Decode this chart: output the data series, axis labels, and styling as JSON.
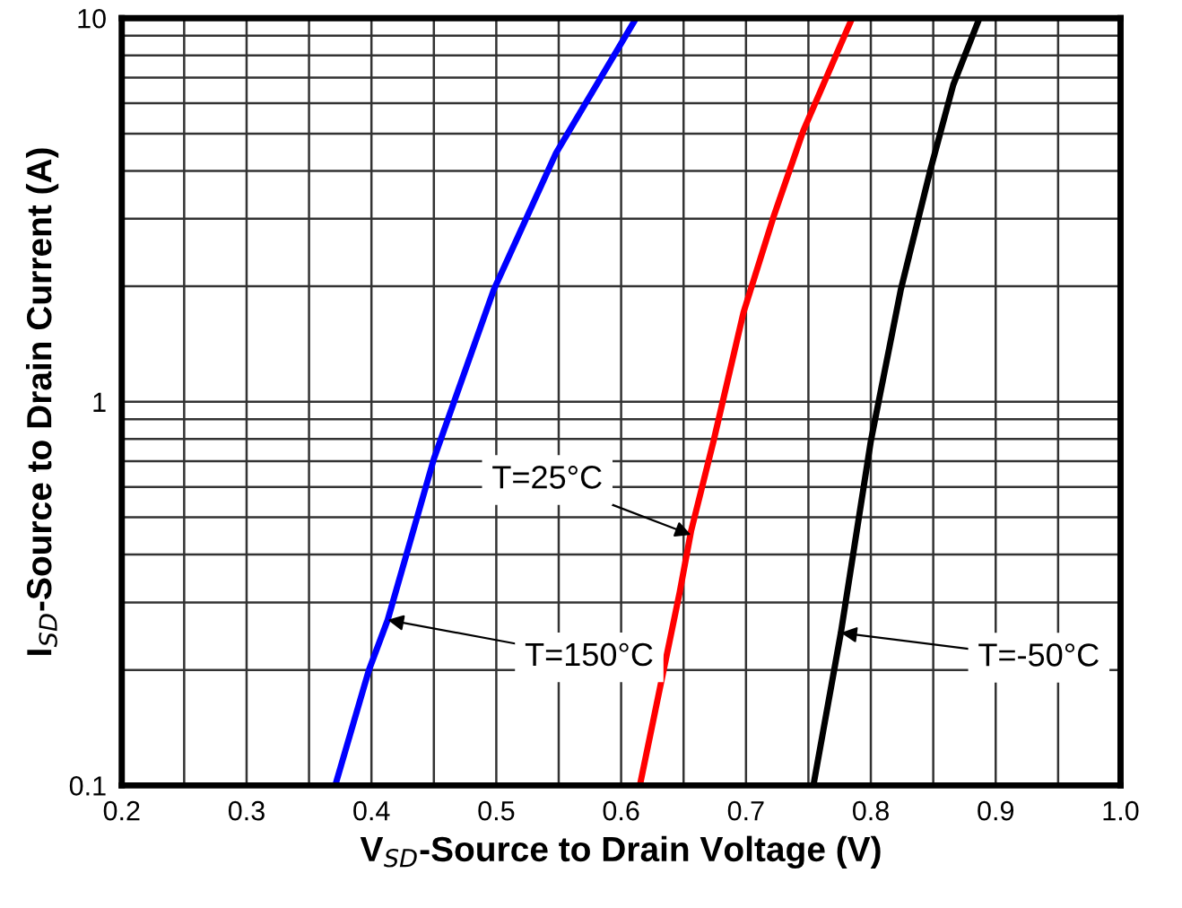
{
  "chart_data": {
    "type": "line",
    "log": "y",
    "grid": true,
    "marker": "none",
    "line_style": "solid",
    "legend": false,
    "xlabel": "V$_{SD}$-Source to Drain Voltage (V)",
    "ylabel": "I$_{SD}$-Source to Drain Current (A)",
    "xlim": [
      0.2,
      1.0
    ],
    "ylim": [
      0.1,
      10
    ],
    "xticks": [
      0.2,
      {
        "value": 0.25,
        "label": null
      },
      0.3,
      {
        "value": 0.35,
        "label": null
      },
      0.4,
      {
        "value": 0.45,
        "label": null
      },
      0.5,
      {
        "value": 0.55,
        "label": null
      },
      0.6,
      {
        "value": 0.65,
        "label": null
      },
      0.7,
      {
        "value": 0.75,
        "label": null
      },
      0.8,
      {
        "value": 0.85,
        "label": null
      },
      0.9,
      {
        "value": 0.95,
        "label": null
      },
      {
        "value": 1.0,
        "label": "1.0"
      }
    ],
    "yticks": [
      0.1,
      {
        "value": 0.2,
        "label": null
      },
      {
        "value": 0.3,
        "label": null
      },
      {
        "value": 0.4,
        "label": null
      },
      {
        "value": 0.5,
        "label": null
      },
      {
        "value": 0.6,
        "label": null
      },
      {
        "value": 0.7,
        "label": null
      },
      {
        "value": 0.8,
        "label": null
      },
      {
        "value": 0.9,
        "label": null
      },
      1,
      {
        "value": 2,
        "label": null
      },
      {
        "value": 3,
        "label": null
      },
      {
        "value": 4,
        "label": null
      },
      {
        "value": 5,
        "label": null
      },
      {
        "value": 6,
        "label": null
      },
      {
        "value": 7,
        "label": null
      },
      {
        "value": 8,
        "label": null
      },
      {
        "value": 9,
        "label": null
      },
      10
    ],
    "series": [
      {
        "color": "#0000ff",
        "x": [
          0.371,
          0.398,
          0.413,
          0.45,
          0.498,
          0.548,
          0.612
        ],
        "values": [
          0.1,
          0.2,
          0.27,
          0.71,
          1.96,
          4.46,
          10
        ]
      },
      {
        "color": "#ff0000",
        "x": [
          0.615,
          0.647,
          0.656,
          0.674,
          0.698,
          0.722,
          0.746,
          0.785
        ],
        "values": [
          0.1,
          0.32,
          0.46,
          0.79,
          1.71,
          3.03,
          5.1,
          10
        ]
      },
      {
        "color": "#000000",
        "x": [
          0.754,
          0.776,
          0.8,
          0.824,
          0.848,
          0.866,
          0.887
        ],
        "values": [
          0.1,
          0.25,
          0.79,
          1.96,
          4.06,
          6.7,
          10
        ]
      }
    ],
    "annotations": [
      {
        "text": "T=150°C",
        "x": 0.413,
        "y": 0.27
      },
      {
        "text": "T=25°C",
        "x": 0.656,
        "y": 0.45
      },
      {
        "text": "T=-50°C",
        "x": 0.776,
        "y": 0.25
      }
    ]
  }
}
